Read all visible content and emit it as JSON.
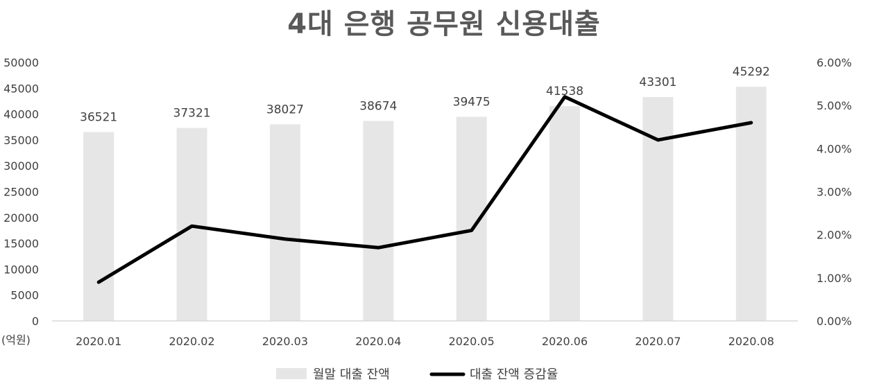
{
  "chart_data": {
    "type": "bar",
    "title": "4대 은행 공무원 신용대출",
    "y_unit_label": "(억원)",
    "categories": [
      "2020.01",
      "2020.02",
      "2020.03",
      "2020.04",
      "2020.05",
      "2020.06",
      "2020.07",
      "2020.08"
    ],
    "series": [
      {
        "name": "월말 대출 잔액",
        "type": "bar",
        "axis": "left",
        "color": "#e7e6e6",
        "values": [
          36521,
          37321,
          38027,
          38674,
          39475,
          41538,
          43301,
          45292
        ]
      },
      {
        "name": "대출 잔액 증감율",
        "type": "line",
        "axis": "right",
        "color": "#000000",
        "values": [
          0.9,
          2.2,
          1.9,
          1.7,
          2.1,
          5.2,
          4.2,
          4.6
        ]
      }
    ],
    "ylim": [
      0,
      50000
    ],
    "y_ticks": [
      "50000",
      "45000",
      "40000",
      "35000",
      "30000",
      "25000",
      "20000",
      "15000",
      "10000",
      "5000",
      "0"
    ],
    "y2lim": [
      0,
      6
    ],
    "y2_ticks": [
      "6.00%",
      "5.00%",
      "4.00%",
      "3.00%",
      "2.00%",
      "1.00%",
      "0.00%"
    ],
    "grid": false,
    "legend": "bottom"
  }
}
